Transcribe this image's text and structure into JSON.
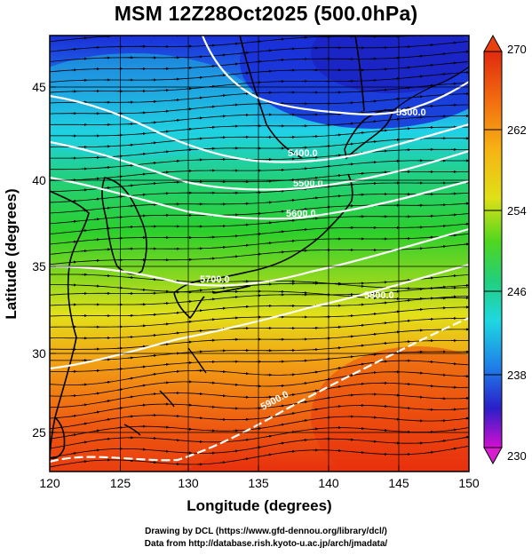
{
  "title": "MSM 12Z28Oct2025 (500.0hPa)",
  "x_axis": {
    "label": "Longitude (degrees)",
    "ticks": [
      "120",
      "125",
      "130",
      "135",
      "140",
      "145",
      "150"
    ]
  },
  "y_axis": {
    "label": "Latitude  (degrees)",
    "ticks": [
      "25",
      "30",
      "35",
      "40",
      "45"
    ]
  },
  "colorbar": {
    "min": 230,
    "max": 270,
    "tick_labels": [
      "270",
      "262",
      "254",
      "246",
      "238",
      "230"
    ]
  },
  "contours": [
    {
      "label": "5300.0"
    },
    {
      "label": "5400.0"
    },
    {
      "label": "5500.0"
    },
    {
      "label": "5600.0"
    },
    {
      "label": "5700.0"
    },
    {
      "label": "5800.0"
    },
    {
      "label": "5900.0"
    }
  ],
  "credits": {
    "line1": "Drawing by DCL (https://www.gfd-dennou.org/library/dcl/)",
    "line2": "Data from http://database.rish.kyoto-u.ac.jp/arch/jmadata/"
  }
}
